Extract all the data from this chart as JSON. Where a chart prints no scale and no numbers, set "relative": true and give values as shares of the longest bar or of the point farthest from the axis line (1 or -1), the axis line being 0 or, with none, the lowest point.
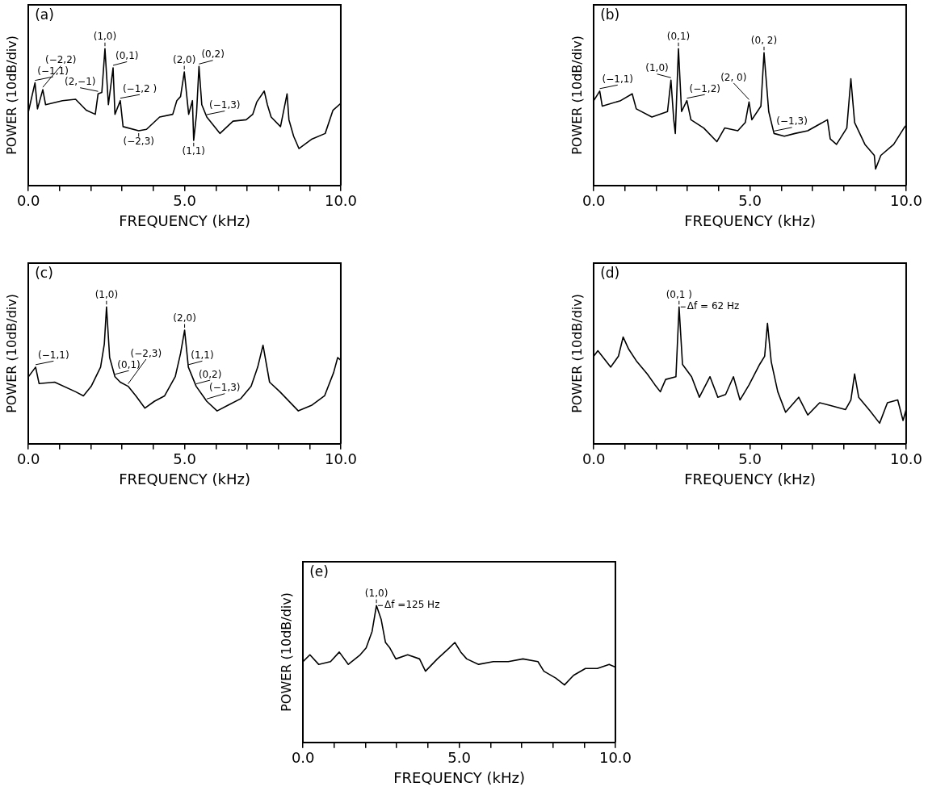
{
  "chart_data": [
    {
      "type": "line",
      "title": "(a)",
      "xlabel": "FREQUENCY (kHz)",
      "ylabel": "POWER (10dB/div)",
      "relative": true,
      "legend": false,
      "grid": false,
      "marker": "none",
      "line_style": "solid",
      "xlim": [
        0,
        10
      ],
      "xticks": [
        {
          "value": 0,
          "label": "0.0"
        },
        {
          "value": 1,
          "label": null
        },
        {
          "value": 2,
          "label": null
        },
        {
          "value": 3,
          "label": null
        },
        {
          "value": 4,
          "label": null
        },
        {
          "value": 5,
          "label": "5.0"
        },
        {
          "value": 6,
          "label": null
        },
        {
          "value": 7,
          "label": null
        },
        {
          "value": 8,
          "label": null
        },
        {
          "value": 9,
          "label": null
        },
        {
          "value": 10,
          "label": "10.0"
        }
      ],
      "x": [
        0,
        0.21,
        0.29,
        0.46,
        0.55,
        1.09,
        1.51,
        1.85,
        2.14,
        2.23,
        2.35,
        2.45,
        2.56,
        2.71,
        2.77,
        2.94,
        3.03,
        3.53,
        3.78,
        4.2,
        4.62,
        4.75,
        4.87,
        4.99,
        5.13,
        5.25,
        5.29,
        5.38,
        5.46,
        5.55,
        5.71,
        6.13,
        6.55,
        6.97,
        7.18,
        7.31,
        7.55,
        7.65,
        7.77,
        8.07,
        8.28,
        8.34,
        8.49,
        8.66,
        9.08,
        9.5,
        9.75,
        10
      ],
      "series": [
        {
          "color": "#000000",
          "values": [
            0.54,
            0.75,
            0.56,
            0.7,
            0.59,
            0.62,
            0.63,
            0.55,
            0.52,
            0.67,
            0.68,
            1,
            0.59,
            0.86,
            0.52,
            0.62,
            0.43,
            0.4,
            0.41,
            0.5,
            0.52,
            0.62,
            0.65,
            0.83,
            0.52,
            0.62,
            0.33,
            0.52,
            0.87,
            0.59,
            0.5,
            0.38,
            0.47,
            0.48,
            0.52,
            0.61,
            0.69,
            0.59,
            0.5,
            0.43,
            0.67,
            0.48,
            0.36,
            0.27,
            0.34,
            0.38,
            0.55,
            0.6
          ]
        }
      ],
      "annotations": [
        {
          "text": "(−1,1)",
          "x": 0.21,
          "y": 0.75
        },
        {
          "text": "(−2,2)",
          "x": 0.46,
          "y": 0.7
        },
        {
          "text": "(1,0)",
          "x": 2.45,
          "y": 1
        },
        {
          "text": "(0,1)",
          "x": 2.71,
          "y": 0.86
        },
        {
          "text": "(2,−1)",
          "x": 2.23,
          "y": 0.67
        },
        {
          "text": "(−1,2 )",
          "x": 2.94,
          "y": 0.62
        },
        {
          "text": "(−2,3)",
          "x": 3.53,
          "y": 0.4
        },
        {
          "text": "(2,0)",
          "x": 4.99,
          "y": 0.83
        },
        {
          "text": "(0,2)",
          "x": 5.46,
          "y": 0.87
        },
        {
          "text": "(−1,3)",
          "x": 5.71,
          "y": 0.5
        },
        {
          "text": "(1,1)",
          "x": 5.29,
          "y": 0.33
        }
      ]
    },
    {
      "type": "line",
      "title": "(b)",
      "xlabel": "FREQUENCY (kHz)",
      "ylabel": "POWER (10dB/div)",
      "relative": true,
      "legend": false,
      "grid": false,
      "marker": "none",
      "line_style": "solid",
      "xlim": [
        0,
        10
      ],
      "xticks": [
        {
          "value": 0,
          "label": "0.0"
        },
        {
          "value": 1,
          "label": null
        },
        {
          "value": 2,
          "label": null
        },
        {
          "value": 3,
          "label": null
        },
        {
          "value": 4,
          "label": null
        },
        {
          "value": 5,
          "label": "5.0"
        },
        {
          "value": 6,
          "label": null
        },
        {
          "value": 7,
          "label": null
        },
        {
          "value": 8,
          "label": null
        },
        {
          "value": 9,
          "label": null
        },
        {
          "value": 10,
          "label": "10.0"
        }
      ],
      "x": [
        0,
        0.19,
        0.27,
        0.86,
        1.23,
        1.36,
        1.86,
        2.36,
        2.47,
        2.56,
        2.61,
        2.71,
        2.81,
        2.98,
        3.11,
        3.52,
        3.94,
        4.19,
        4.61,
        4.85,
        4.97,
        5.06,
        5.35,
        5.45,
        5.6,
        5.77,
        6.1,
        6.44,
        6.85,
        7.48,
        7.57,
        7.77,
        8.1,
        8.23,
        8.35,
        8.68,
        8.98,
        9.02,
        9.19,
        9.6,
        9.93,
        10
      ],
      "series": [
        {
          "color": "#000000",
          "values": [
            0.62,
            0.69,
            0.58,
            0.62,
            0.67,
            0.56,
            0.5,
            0.54,
            0.77,
            0.48,
            0.38,
            1,
            0.54,
            0.62,
            0.48,
            0.42,
            0.32,
            0.42,
            0.4,
            0.46,
            0.61,
            0.48,
            0.58,
            0.97,
            0.54,
            0.38,
            0.36,
            0.38,
            0.4,
            0.48,
            0.34,
            0.3,
            0.42,
            0.78,
            0.46,
            0.3,
            0.22,
            0.12,
            0.22,
            0.3,
            0.42,
            0.44
          ]
        }
      ],
      "annotations": [
        {
          "text": "(−1,1)",
          "x": 0.19,
          "y": 0.69
        },
        {
          "text": "(1,0)",
          "x": 2.47,
          "y": 0.77
        },
        {
          "text": "(0,1)",
          "x": 2.71,
          "y": 1
        },
        {
          "text": "(−1,2)",
          "x": 2.98,
          "y": 0.62
        },
        {
          "text": "(2, 0)",
          "x": 4.97,
          "y": 0.61
        },
        {
          "text": "(0, 2)",
          "x": 5.45,
          "y": 0.97
        },
        {
          "text": "(−1,3)",
          "x": 5.77,
          "y": 0.38
        }
      ]
    },
    {
      "type": "line",
      "title": "(c)",
      "xlabel": "FREQUENCY (kHz)",
      "ylabel": "POWER (10dB/div)",
      "relative": true,
      "legend": false,
      "grid": false,
      "marker": "none",
      "line_style": "solid",
      "xlim": [
        0,
        10
      ],
      "xticks": [
        {
          "value": 0,
          "label": "0.0"
        },
        {
          "value": 1,
          "label": null
        },
        {
          "value": 2,
          "label": null
        },
        {
          "value": 3,
          "label": null
        },
        {
          "value": 4,
          "label": null
        },
        {
          "value": 5,
          "label": "5.0"
        },
        {
          "value": 6,
          "label": null
        },
        {
          "value": 7,
          "label": null
        },
        {
          "value": 8,
          "label": null
        },
        {
          "value": 9,
          "label": null
        },
        {
          "value": 10,
          "label": "10.0"
        }
      ],
      "x": [
        0,
        0.23,
        0.34,
        0.84,
        1.51,
        1.76,
        2.01,
        2.31,
        2.43,
        2.5,
        2.6,
        2.77,
        2.94,
        3.19,
        3.44,
        3.73,
        4.03,
        4.36,
        4.7,
        4.87,
        5,
        5.12,
        5.37,
        5.71,
        6.04,
        6.38,
        6.8,
        7.13,
        7.34,
        7.51,
        7.72,
        8.05,
        8.64,
        9.06,
        9.48,
        9.77,
        9.9,
        10
      ],
      "series": [
        {
          "color": "#000000",
          "values": [
            0.49,
            0.56,
            0.44,
            0.45,
            0.38,
            0.35,
            0.42,
            0.56,
            0.73,
            1,
            0.63,
            0.49,
            0.45,
            0.42,
            0.35,
            0.26,
            0.31,
            0.35,
            0.49,
            0.66,
            0.83,
            0.56,
            0.42,
            0.31,
            0.24,
            0.28,
            0.33,
            0.42,
            0.56,
            0.72,
            0.45,
            0.38,
            0.24,
            0.28,
            0.35,
            0.52,
            0.63,
            0.61
          ]
        }
      ],
      "annotations": [
        {
          "text": "(−1,1)",
          "x": 0.23,
          "y": 0.56
        },
        {
          "text": "(1,0)",
          "x": 2.5,
          "y": 1
        },
        {
          "text": "(0,1)",
          "x": 2.77,
          "y": 0.49
        },
        {
          "text": "(−2,3)",
          "x": 3.19,
          "y": 0.42
        },
        {
          "text": "(2,0)",
          "x": 5,
          "y": 0.83
        },
        {
          "text": "(1,1)",
          "x": 5.12,
          "y": 0.56
        },
        {
          "text": "(0,2)",
          "x": 5.37,
          "y": 0.42
        },
        {
          "text": "(−1,3)",
          "x": 5.71,
          "y": 0.31
        }
      ]
    },
    {
      "type": "line",
      "title": "(d)",
      "xlabel": "FREQUENCY (kHz)",
      "ylabel": "POWER (10dB/div)",
      "relative": true,
      "legend": false,
      "grid": false,
      "marker": "none",
      "line_style": "solid",
      "xlim": [
        0,
        10
      ],
      "xticks": [
        {
          "value": 0,
          "label": "0.0"
        },
        {
          "value": 1,
          "label": null
        },
        {
          "value": 2,
          "label": null
        },
        {
          "value": 3,
          "label": null
        },
        {
          "value": 4,
          "label": null
        },
        {
          "value": 5,
          "label": "5.0"
        },
        {
          "value": 6,
          "label": null
        },
        {
          "value": 7,
          "label": null
        },
        {
          "value": 8,
          "label": null
        },
        {
          "value": 9,
          "label": null
        },
        {
          "value": 10,
          "label": "10.0"
        }
      ],
      "x": [
        0,
        0.13,
        0.54,
        0.79,
        0.94,
        1.12,
        1.38,
        1.71,
        1.96,
        2.13,
        2.3,
        2.63,
        2.73,
        2.84,
        3.13,
        3.38,
        3.72,
        3.97,
        4.22,
        4.47,
        4.68,
        4.97,
        5.31,
        5.47,
        5.56,
        5.68,
        5.89,
        6.14,
        6.56,
        6.85,
        7.23,
        7.56,
        8.06,
        8.23,
        8.35,
        8.48,
        8.81,
        9.15,
        9.4,
        9.73,
        9.9,
        10
      ],
      "series": [
        {
          "color": "#000000",
          "values": [
            0.64,
            0.68,
            0.56,
            0.64,
            0.78,
            0.69,
            0.6,
            0.51,
            0.43,
            0.38,
            0.47,
            0.49,
            1,
            0.58,
            0.49,
            0.34,
            0.49,
            0.34,
            0.36,
            0.49,
            0.32,
            0.43,
            0.58,
            0.64,
            0.88,
            0.6,
            0.38,
            0.23,
            0.34,
            0.21,
            0.3,
            0.28,
            0.25,
            0.32,
            0.51,
            0.34,
            0.25,
            0.15,
            0.3,
            0.32,
            0.17,
            0.25
          ]
        }
      ],
      "annotations": [
        {
          "text": "(0,1 )",
          "x": 2.73,
          "y": 1
        },
        {
          "text": "Δf = 62 Hz",
          "x": 2.73,
          "y": 1
        }
      ]
    },
    {
      "type": "line",
      "title": "(e)",
      "xlabel": "FREQUENCY (kHz)",
      "ylabel": "POWER (10dB/div)",
      "relative": true,
      "legend": false,
      "grid": false,
      "marker": "none",
      "line_style": "solid",
      "xlim": [
        0,
        10
      ],
      "xticks": [
        {
          "value": 0,
          "label": "0.0"
        },
        {
          "value": 1,
          "label": null
        },
        {
          "value": 2,
          "label": null
        },
        {
          "value": 3,
          "label": null
        },
        {
          "value": 4,
          "label": null
        },
        {
          "value": 5,
          "label": "5.0"
        },
        {
          "value": 6,
          "label": null
        },
        {
          "value": 7,
          "label": null
        },
        {
          "value": 8,
          "label": null
        },
        {
          "value": 9,
          "label": null
        },
        {
          "value": 10,
          "label": "10.0"
        }
      ],
      "x": [
        0,
        0.22,
        0.5,
        0.88,
        1.16,
        1.45,
        1.83,
        2.02,
        2.21,
        2.35,
        2.5,
        2.64,
        2.78,
        2.97,
        3.35,
        3.73,
        3.92,
        4.3,
        4.68,
        4.86,
        5.05,
        5.24,
        5.62,
        6.09,
        6.57,
        7.04,
        7.52,
        7.71,
        8.09,
        8.37,
        8.66,
        9.04,
        9.42,
        9.8,
        10
      ],
      "series": [
        {
          "color": "#000000",
          "values": [
            0.59,
            0.64,
            0.57,
            0.59,
            0.66,
            0.57,
            0.64,
            0.69,
            0.81,
            1,
            0.9,
            0.73,
            0.69,
            0.61,
            0.64,
            0.61,
            0.52,
            0.61,
            0.69,
            0.73,
            0.66,
            0.61,
            0.57,
            0.59,
            0.59,
            0.61,
            0.59,
            0.52,
            0.47,
            0.42,
            0.49,
            0.54,
            0.54,
            0.57,
            0.55
          ]
        }
      ],
      "annotations": [
        {
          "text": "(1,0)",
          "x": 2.35,
          "y": 1
        },
        {
          "text": "Δf =125 Hz",
          "x": 2.35,
          "y": 1
        }
      ]
    }
  ]
}
